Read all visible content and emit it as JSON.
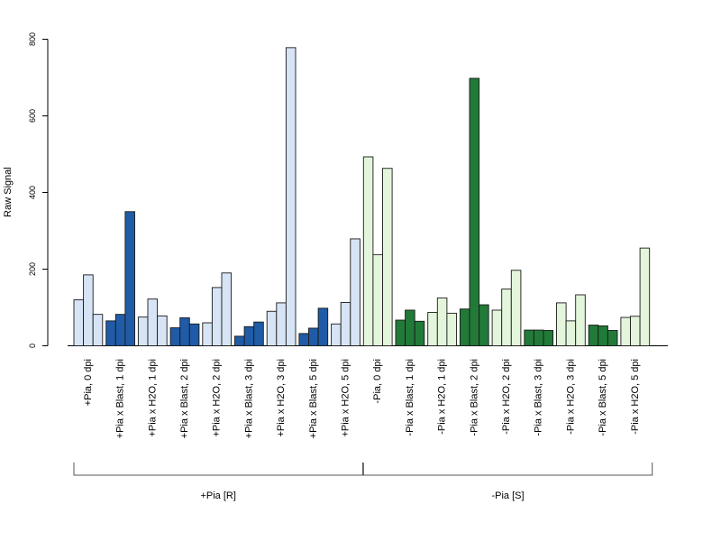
{
  "chart_data": {
    "type": "bar",
    "ylabel": "Raw Signal",
    "ylim": [
      0,
      800
    ],
    "yticks": [
      0,
      200,
      400,
      600,
      800
    ],
    "grid": false,
    "colors": {
      "dark_blue": "#1f5ba6",
      "light_blue": "#d6e4f5",
      "dark_green": "#217a38",
      "light_green": "#e3f5db"
    },
    "categories": [
      "+Pia, 0 dpi",
      "+Pia x Blast, 1 dpi",
      "+Pia x H2O, 1 dpi",
      "+Pia x Blast, 2 dpi",
      "+Pia x H2O, 2 dpi",
      "+Pia x Blast, 3 dpi",
      "+Pia x H2O, 3 dpi",
      "+Pia x Blast, 5 dpi",
      "+Pia x H2O, 5 dpi",
      "-Pia, 0 dpi",
      "-Pia x Blast, 1 dpi",
      "-Pia x H2O, 1 dpi",
      "-Pia x Blast, 2 dpi",
      "-Pia x H2O, 2 dpi",
      "-Pia x Blast, 3 dpi",
      "-Pia x H2O, 3 dpi",
      "-Pia x Blast, 5 dpi",
      "-Pia x H2O, 5 dpi"
    ],
    "values": [
      [
        120,
        185,
        82
      ],
      [
        65,
        82,
        350
      ],
      [
        75,
        122,
        78
      ],
      [
        47,
        73,
        57
      ],
      [
        60,
        152,
        190
      ],
      [
        25,
        50,
        62
      ],
      [
        90,
        112,
        778
      ],
      [
        32,
        46,
        98
      ],
      [
        57,
        113,
        279
      ],
      [
        493,
        238,
        463
      ],
      [
        67,
        93,
        64
      ],
      [
        87,
        125,
        85
      ],
      [
        96,
        698,
        107
      ],
      [
        93,
        148,
        197
      ],
      [
        41,
        41,
        40
      ],
      [
        112,
        65,
        133
      ],
      [
        54,
        52,
        40
      ],
      [
        74,
        77,
        255
      ]
    ],
    "bar_color_keys": [
      "light_blue",
      "dark_blue",
      "light_blue",
      "dark_blue",
      "light_blue",
      "dark_blue",
      "light_blue",
      "dark_blue",
      "light_blue",
      "light_green",
      "dark_green",
      "light_green",
      "dark_green",
      "light_green",
      "dark_green",
      "light_green",
      "dark_green",
      "light_green"
    ],
    "groups": [
      {
        "label": "+Pia [R]",
        "first": 0,
        "last": 8
      },
      {
        "label": "-Pia [S]",
        "first": 9,
        "last": 17
      }
    ]
  }
}
